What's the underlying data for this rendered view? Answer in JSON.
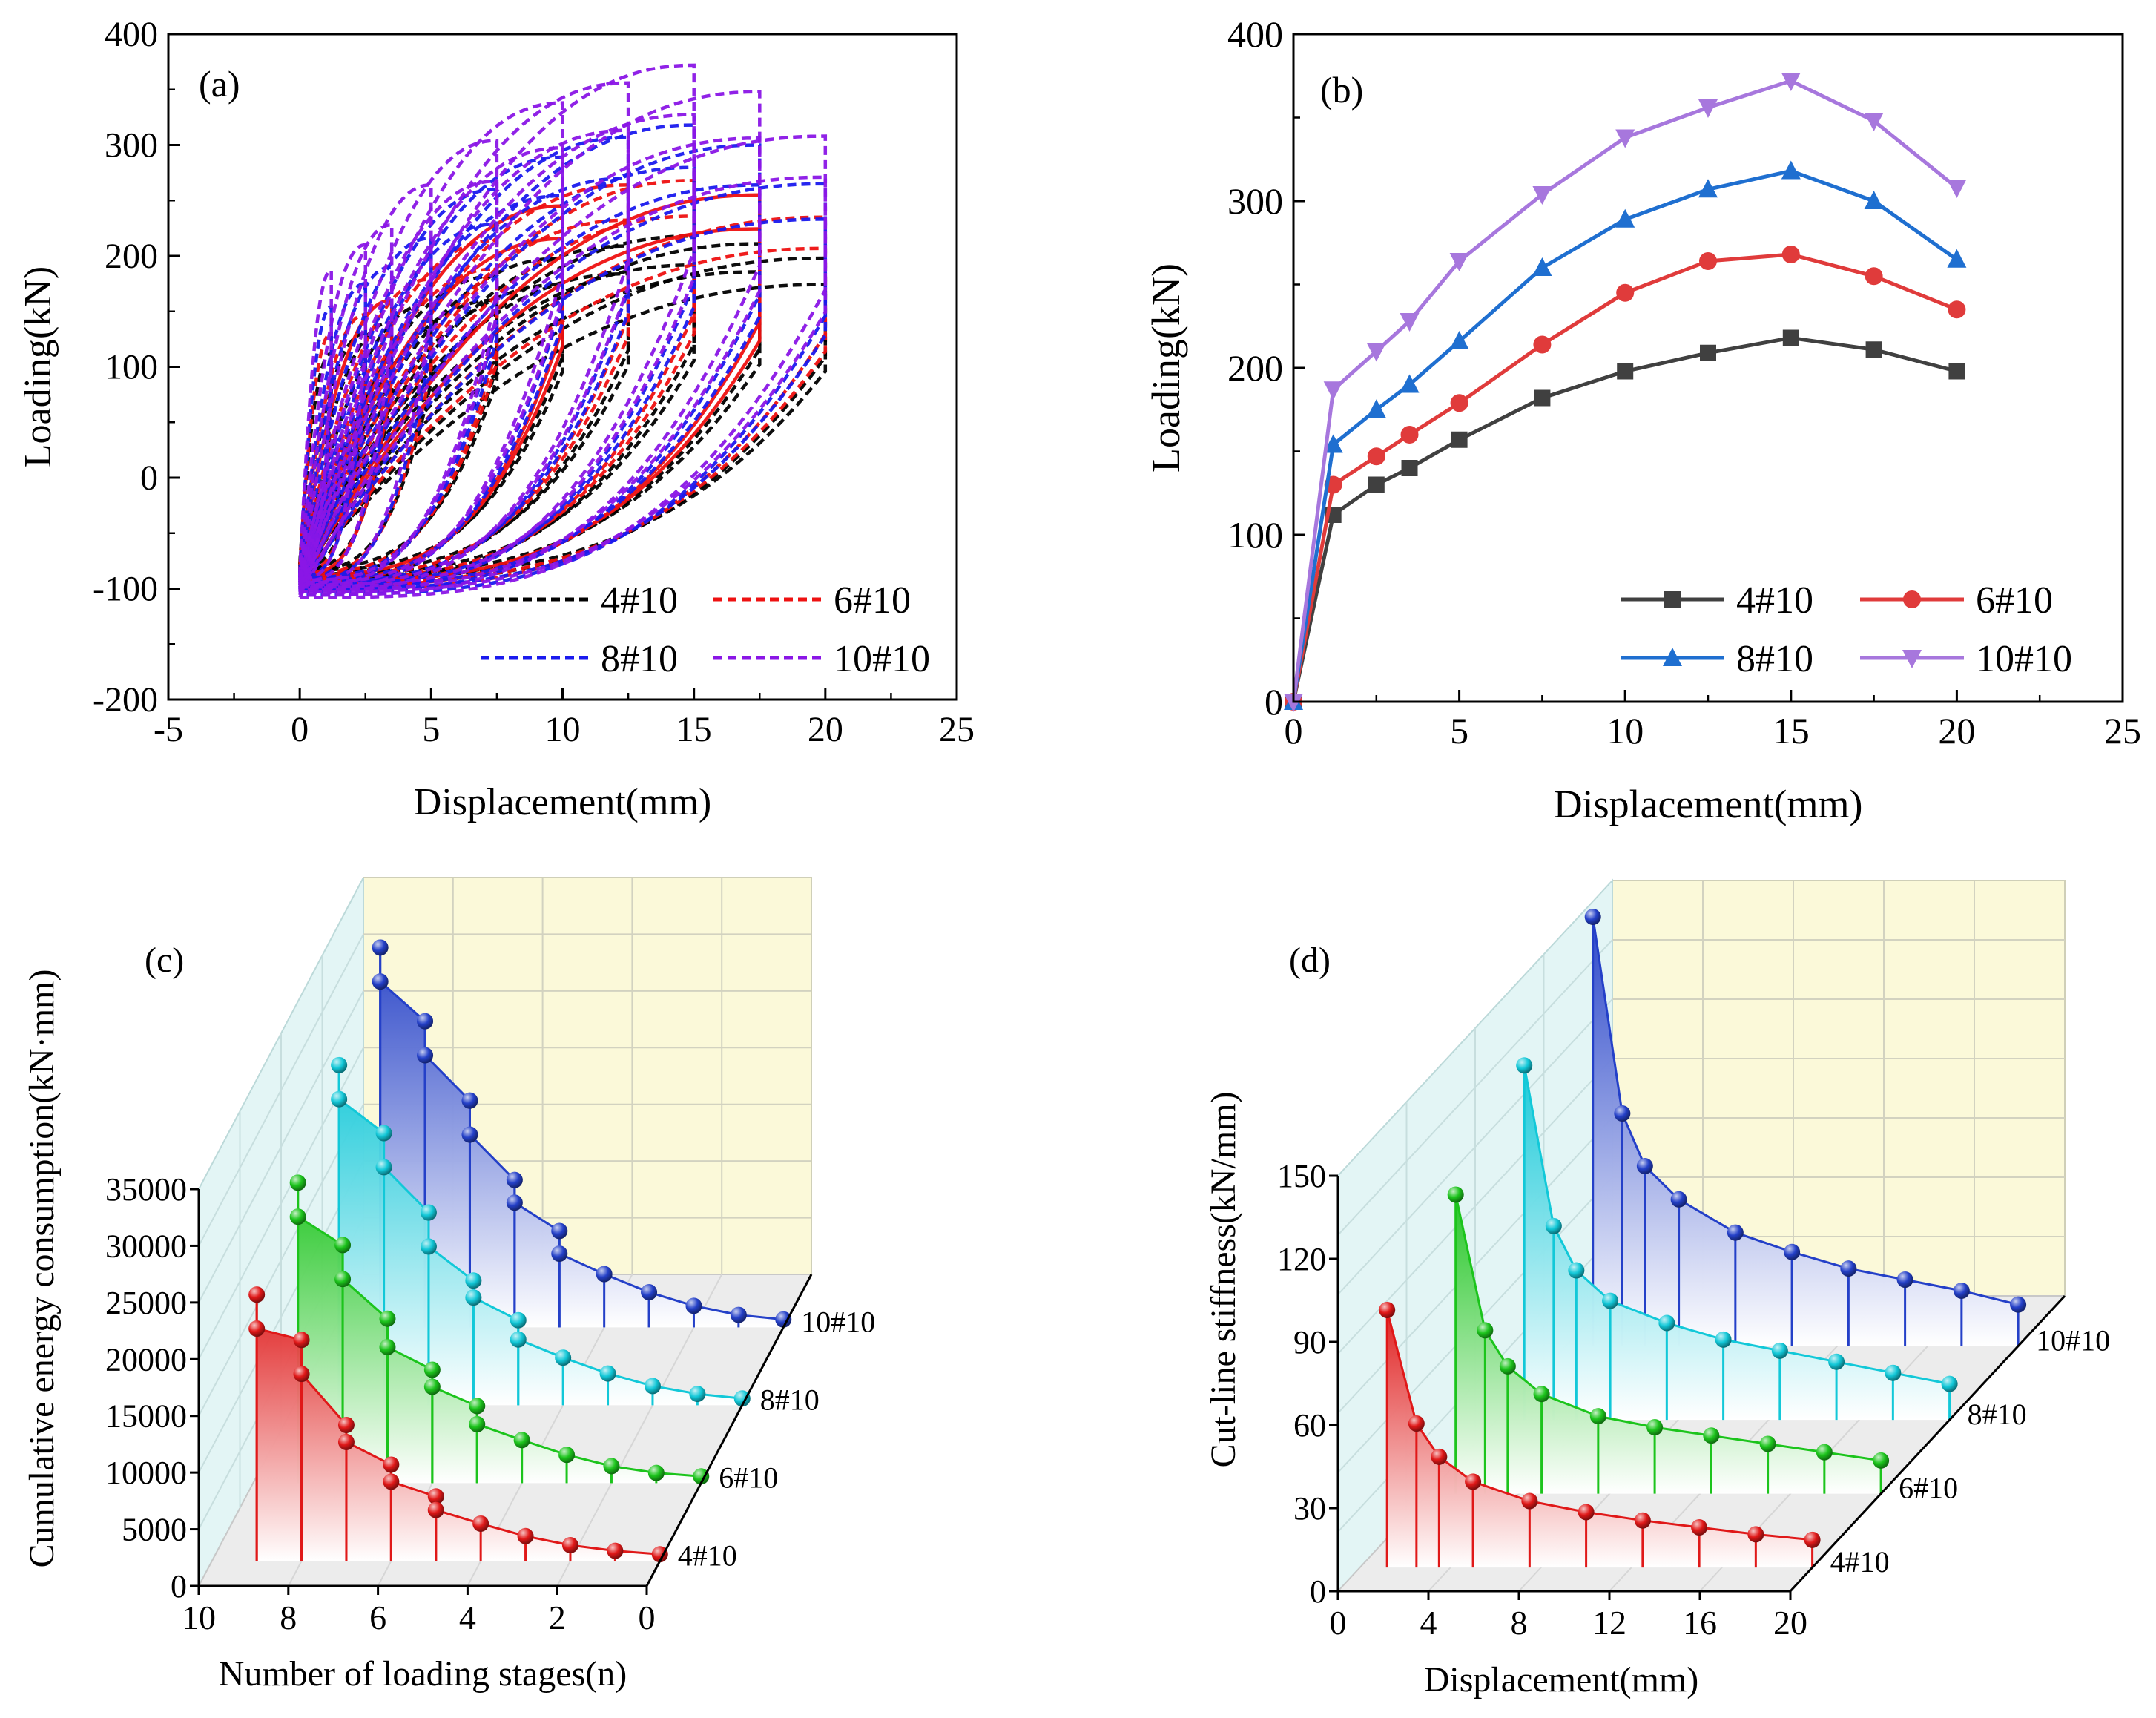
{
  "figure": {
    "panel_a": {
      "label": "(a)"
    },
    "panel_b": {
      "label": "(b)"
    },
    "panel_c": {
      "label": "(c)"
    },
    "panel_d": {
      "label": "(d)"
    }
  },
  "chart_data": [
    {
      "id": "a",
      "type": "line",
      "title": "(a)",
      "xlabel": "Displacement(mm)",
      "ylabel": "Loading(kN)",
      "xlim": [
        -5,
        25
      ],
      "ylim": [
        -200,
        400
      ],
      "xticks": [
        "-5",
        "0",
        "5",
        "10",
        "15",
        "20",
        "25"
      ],
      "yticks": [
        "-200",
        "-100",
        "0",
        "100",
        "200",
        "300",
        "400"
      ],
      "line_style": "dashed",
      "legend_position": "bottom-right",
      "series": [
        {
          "name": "4#10",
          "color": "#000000",
          "amplitudes": [
            1.2,
            2.5,
            3.5,
            5,
            7.5,
            10,
            12.5,
            15,
            17.5,
            20
          ],
          "peaks": [
            112,
            130,
            140,
            157,
            182,
            198,
            209,
            218,
            211,
            198
          ],
          "min_load": -95
        },
        {
          "name": "6#10",
          "color": "#ee1111",
          "amplitudes": [
            1.2,
            2.5,
            3.5,
            5,
            7.5,
            10,
            12.5,
            15,
            17.5,
            20
          ],
          "peaks": [
            130,
            147,
            160,
            179,
            214,
            245,
            264,
            268,
            255,
            235
          ],
          "min_load": -100
        },
        {
          "name": "8#10",
          "color": "#1a1aee",
          "amplitudes": [
            1.2,
            2.5,
            3.5,
            5,
            7.5,
            10,
            12.5,
            15,
            17.5,
            20
          ],
          "peaks": [
            154,
            175,
            190,
            216,
            260,
            289,
            307,
            318,
            300,
            265
          ],
          "min_load": -105
        },
        {
          "name": "10#10",
          "color": "#8a16e6",
          "amplitudes": [
            1.2,
            2.5,
            3.5,
            5,
            7.5,
            10,
            12.5,
            15,
            17.5,
            20
          ],
          "peaks": [
            187,
            210,
            228,
            264,
            304,
            338,
            356,
            372,
            348,
            308
          ],
          "min_load": -108
        }
      ]
    },
    {
      "id": "b",
      "type": "line",
      "title": "(b)",
      "xlabel": "Displacement(mm)",
      "ylabel": "Loading(kN)",
      "xlim": [
        0,
        25
      ],
      "ylim": [
        0,
        400
      ],
      "xticks": [
        "0",
        "5",
        "10",
        "15",
        "20",
        "25"
      ],
      "yticks": [
        "0",
        "100",
        "200",
        "300",
        "400"
      ],
      "legend_position": "bottom-right",
      "x": [
        0,
        1.2,
        2.5,
        3.5,
        5,
        7.5,
        10,
        12.5,
        15,
        17.5,
        20
      ],
      "series": [
        {
          "name": "4#10",
          "color": "#404040",
          "marker": "square",
          "values": [
            0,
            112,
            130,
            140,
            157,
            182,
            198,
            209,
            218,
            211,
            198
          ]
        },
        {
          "name": "6#10",
          "color": "#e03b3b",
          "marker": "circle",
          "values": [
            0,
            130,
            147,
            160,
            179,
            214,
            245,
            264,
            268,
            255,
            235
          ]
        },
        {
          "name": "8#10",
          "color": "#1f6fd0",
          "marker": "triangle-up",
          "values": [
            0,
            154,
            175,
            190,
            216,
            260,
            289,
            307,
            318,
            300,
            265
          ]
        },
        {
          "name": "10#10",
          "color": "#a777dd",
          "marker": "triangle-down",
          "values": [
            0,
            187,
            210,
            228,
            264,
            304,
            338,
            356,
            372,
            348,
            308
          ]
        }
      ]
    },
    {
      "id": "c",
      "type": "scatter",
      "projection": "3d-waterfall",
      "title": "(c)",
      "xlabel": "Number of loading stages(n)",
      "ylabel": "Cumulative energy consumption(kN·mm)",
      "xlim": [
        10,
        0
      ],
      "ylim": [
        0,
        35000
      ],
      "xticks": [
        "10",
        "8",
        "6",
        "4",
        "2",
        "0"
      ],
      "yticks": [
        "0",
        "5000",
        "10000",
        "15000",
        "20000",
        "25000",
        "30000",
        "35000"
      ],
      "categories": [
        "4#10",
        "6#10",
        "8#10",
        "10#10"
      ],
      "series": [
        {
          "name": "4#10",
          "color": "#e01818",
          "x": [
            9,
            9,
            8,
            8,
            7,
            7,
            6,
            6,
            5,
            5,
            4,
            3,
            2,
            1,
            0
          ],
          "values": [
            23500,
            20500,
            19500,
            16500,
            12000,
            10500,
            8500,
            7000,
            5700,
            4500,
            3300,
            2200,
            1400,
            900,
            600
          ]
        },
        {
          "name": "6#10",
          "color": "#1cc41c",
          "x": [
            9,
            9,
            8,
            8,
            7,
            7,
            6,
            6,
            5,
            5,
            4,
            3,
            2,
            1,
            0
          ],
          "values": [
            26500,
            23500,
            21000,
            18000,
            14500,
            12000,
            10000,
            8500,
            6800,
            5200,
            3800,
            2500,
            1500,
            900,
            600
          ]
        },
        {
          "name": "8#10",
          "color": "#12c8d8",
          "x": [
            9,
            9,
            8,
            8,
            7,
            7,
            6,
            6,
            5,
            5,
            4,
            3,
            2,
            1,
            0
          ],
          "values": [
            30000,
            27000,
            24000,
            21000,
            17000,
            14000,
            11000,
            9500,
            7500,
            5800,
            4200,
            2800,
            1700,
            1000,
            600
          ]
        },
        {
          "name": "10#10",
          "color": "#2440c8",
          "x": [
            9,
            9,
            8,
            8,
            7,
            7,
            6,
            6,
            5,
            5,
            4,
            3,
            2,
            1,
            0
          ],
          "values": [
            33500,
            30500,
            27000,
            24000,
            20000,
            17000,
            13000,
            11000,
            8500,
            6500,
            4700,
            3100,
            1900,
            1100,
            700
          ]
        }
      ]
    },
    {
      "id": "d",
      "type": "scatter",
      "projection": "3d-waterfall",
      "title": "(d)",
      "xlabel": "Displacement(mm)",
      "ylabel": "Cut-line stiffness(kN/mm)",
      "xlim": [
        0,
        20
      ],
      "ylim": [
        0,
        150
      ],
      "xticks": [
        "0",
        "4",
        "8",
        "12",
        "16",
        "20"
      ],
      "yticks": [
        "0",
        "30",
        "60",
        "90",
        "120",
        "150"
      ],
      "categories": [
        "4#10",
        "6#10",
        "8#10",
        "10#10"
      ],
      "series": [
        {
          "name": "4#10",
          "color": "#e01818",
          "x": [
            1.2,
            2.5,
            3.5,
            5,
            7.5,
            10,
            12.5,
            15,
            17.5,
            20
          ],
          "values": [
            93,
            52,
            40,
            31,
            24,
            20,
            17,
            14.5,
            12,
            10
          ]
        },
        {
          "name": "6#10",
          "color": "#1cc41c",
          "x": [
            1.2,
            2.5,
            3.5,
            5,
            7.5,
            10,
            12.5,
            15,
            17.5,
            20
          ],
          "values": [
            108,
            59,
            46,
            36,
            28,
            24,
            21,
            18,
            15,
            12
          ]
        },
        {
          "name": "8#10",
          "color": "#12c8d8",
          "x": [
            1.2,
            2.5,
            3.5,
            5,
            7.5,
            10,
            12.5,
            15,
            17.5,
            20
          ],
          "values": [
            128,
            70,
            54,
            43,
            35,
            29,
            25,
            21,
            17,
            13
          ]
        },
        {
          "name": "10#10",
          "color": "#2440c8",
          "x": [
            1.2,
            2.5,
            3.5,
            5,
            7.5,
            10,
            12.5,
            15,
            17.5,
            20
          ],
          "values": [
            155,
            84,
            65,
            53,
            41,
            34,
            28,
            24,
            20,
            15
          ]
        }
      ]
    }
  ]
}
